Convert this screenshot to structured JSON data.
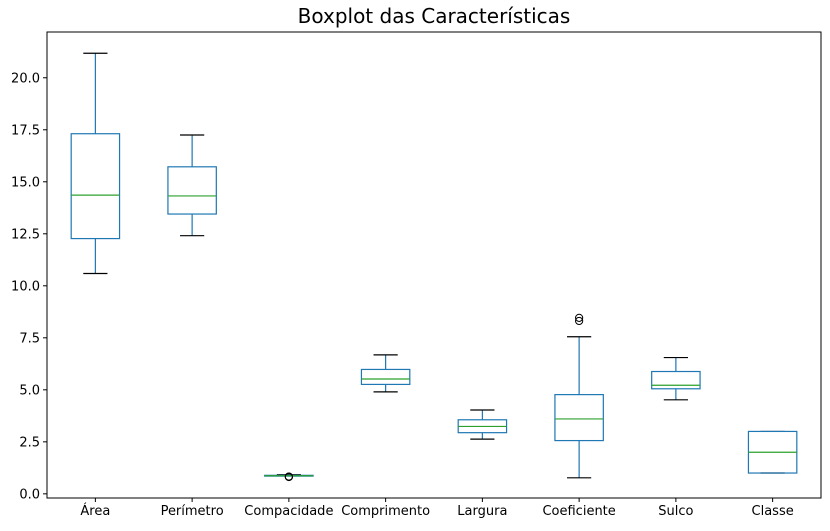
{
  "chart_data": {
    "type": "boxplot",
    "title": "Boxplot das Características",
    "xlabel": "",
    "ylabel": "",
    "categories": [
      "Área",
      "Perímetro",
      "Compacidade",
      "Comprimento",
      "Largura",
      "Coeficiente",
      "Sulco",
      "Classe"
    ],
    "ylim": [
      -0.2,
      22.2
    ],
    "yticks": [
      0.0,
      2.5,
      5.0,
      7.5,
      10.0,
      12.5,
      15.0,
      17.5,
      20.0
    ],
    "ytick_labels": [
      "0.0",
      "2.5",
      "5.0",
      "7.5",
      "10.0",
      "12.5",
      "15.0",
      "17.5",
      "20.0"
    ],
    "grid": false,
    "legend": "none",
    "colors": {
      "box": "#1f77b4",
      "median": "#2ca02c",
      "cap": "#000000",
      "axis": "#000000"
    },
    "boxes": [
      {
        "name": "Área",
        "whislo": 10.59,
        "q1": 12.27,
        "med": 14.36,
        "q3": 17.31,
        "whishi": 21.18,
        "fliers": []
      },
      {
        "name": "Perímetro",
        "whislo": 12.41,
        "q1": 13.45,
        "med": 14.32,
        "q3": 15.72,
        "whishi": 17.25,
        "fliers": []
      },
      {
        "name": "Compacidade",
        "whislo": 0.86,
        "q1": 0.86,
        "med": 0.87,
        "q3": 0.89,
        "whishi": 0.92,
        "fliers": [
          0.81,
          0.82,
          0.83
        ]
      },
      {
        "name": "Comprimento",
        "whislo": 4.9,
        "q1": 5.26,
        "med": 5.52,
        "q3": 5.98,
        "whishi": 6.68,
        "fliers": []
      },
      {
        "name": "Largura",
        "whislo": 2.63,
        "q1": 2.94,
        "med": 3.24,
        "q3": 3.56,
        "whishi": 4.03,
        "fliers": []
      },
      {
        "name": "Coeficiente",
        "whislo": 0.77,
        "q1": 2.56,
        "med": 3.6,
        "q3": 4.77,
        "whishi": 7.55,
        "fliers": [
          8.31,
          8.46
        ]
      },
      {
        "name": "Sulco",
        "whislo": 4.52,
        "q1": 5.05,
        "med": 5.22,
        "q3": 5.88,
        "whishi": 6.55,
        "fliers": []
      },
      {
        "name": "Classe",
        "whislo": 1.0,
        "q1": 1.0,
        "med": 2.0,
        "q3": 3.0,
        "whishi": 3.0,
        "fliers": []
      }
    ]
  }
}
